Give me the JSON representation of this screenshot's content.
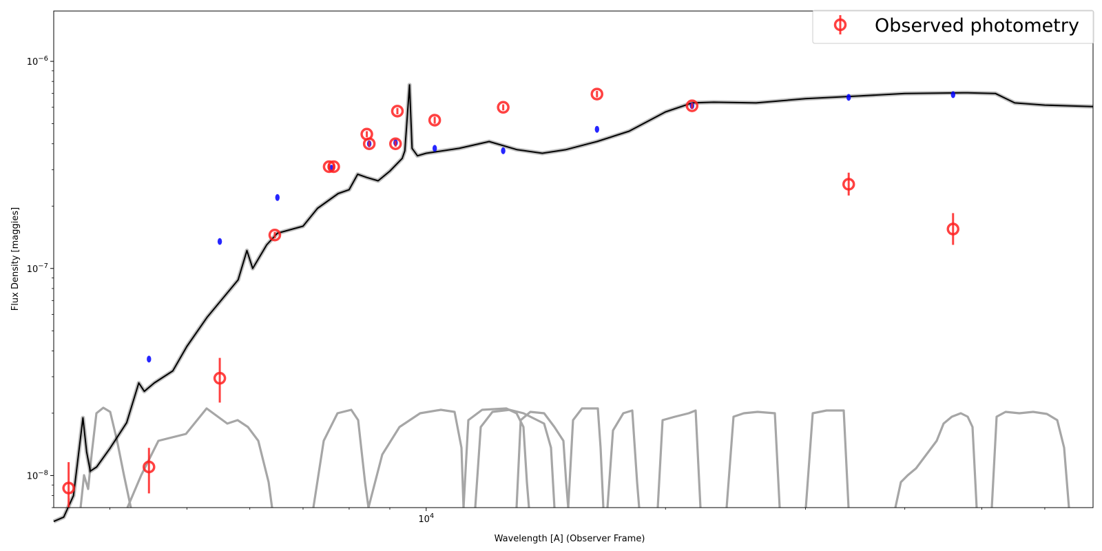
{
  "chart_data": {
    "type": "scatter",
    "title": "",
    "xlabel": "Wavelength [A] (Observer Frame)",
    "ylabel": "Flux Density [maggies]",
    "x_scale": "log",
    "y_scale": "log",
    "xlim": [
      3400,
      69000
    ],
    "ylim": [
      7e-09,
      1.75e-06
    ],
    "grid": false,
    "legend": {
      "placement": "top-right",
      "entries": [
        "Observed photometry"
      ]
    },
    "colors": {
      "observed": "#ff2020",
      "model_photometry": "#0000ff",
      "spectrum": "#000000",
      "filters": "#a6a6a6"
    },
    "y_ticks": [
      {
        "value": 1e-08,
        "label_base": "10",
        "label_exp": "−8"
      },
      {
        "value": 1e-07,
        "label_base": "10",
        "label_exp": "−7"
      },
      {
        "value": 1e-06,
        "label_base": "10",
        "label_exp": "−6"
      }
    ],
    "x_ticks": [
      {
        "value": 10000,
        "label_base": "10",
        "label_exp": "4"
      }
    ],
    "x_minor_ticks": [
      4000,
      5000,
      6000,
      7000,
      8000,
      9000,
      20000,
      30000,
      40000,
      50000,
      60000
    ],
    "series": [
      {
        "name": "Observed photometry",
        "kind": "errorbar",
        "points": [
          {
            "x": 3550,
            "y": 8.7e-09,
            "ylo": 6.8e-09,
            "yhi": 1.16e-08
          },
          {
            "x": 4480,
            "y": 1.1e-08,
            "ylo": 8.2e-09,
            "yhi": 1.36e-08
          },
          {
            "x": 5500,
            "y": 2.95e-08,
            "ylo": 2.25e-08,
            "yhi": 3.7e-08
          },
          {
            "x": 6450,
            "y": 1.45e-07,
            "ylo": 1.4e-07,
            "yhi": 1.5e-07
          },
          {
            "x": 7550,
            "y": 3.1e-07,
            "ylo": 3e-07,
            "yhi": 3.2e-07
          },
          {
            "x": 7650,
            "y": 3.1e-07,
            "ylo": 3e-07,
            "yhi": 3.2e-07
          },
          {
            "x": 8420,
            "y": 4.45e-07,
            "ylo": 4.3e-07,
            "yhi": 4.6e-07
          },
          {
            "x": 8480,
            "y": 4e-07,
            "ylo": 3.87e-07,
            "yhi": 4.13e-07
          },
          {
            "x": 9150,
            "y": 4e-07,
            "ylo": 3.87e-07,
            "yhi": 4.13e-07
          },
          {
            "x": 9200,
            "y": 5.75e-07,
            "ylo": 5.55e-07,
            "yhi": 5.95e-07
          },
          {
            "x": 10250,
            "y": 5.2e-07,
            "ylo": 5e-07,
            "yhi": 5.4e-07
          },
          {
            "x": 12500,
            "y": 6e-07,
            "ylo": 5.8e-07,
            "yhi": 6.2e-07
          },
          {
            "x": 16400,
            "y": 6.95e-07,
            "ylo": 6.7e-07,
            "yhi": 7.2e-07
          },
          {
            "x": 21600,
            "y": 6.1e-07,
            "ylo": 5.9e-07,
            "yhi": 6.3e-07
          },
          {
            "x": 34000,
            "y": 2.55e-07,
            "ylo": 2.25e-07,
            "yhi": 2.9e-07
          },
          {
            "x": 46000,
            "y": 1.55e-07,
            "ylo": 1.3e-07,
            "yhi": 1.85e-07
          }
        ]
      },
      {
        "name": "",
        "kind": "model_photometry",
        "points": [
          {
            "x": 4480,
            "y": 3.65e-08
          },
          {
            "x": 5500,
            "y": 1.35e-07
          },
          {
            "x": 6500,
            "y": 2.2e-07
          },
          {
            "x": 7600,
            "y": 3.05e-07
          },
          {
            "x": 8480,
            "y": 4e-07
          },
          {
            "x": 9150,
            "y": 4.05e-07
          },
          {
            "x": 10250,
            "y": 3.8e-07
          },
          {
            "x": 12500,
            "y": 3.7e-07
          },
          {
            "x": 16400,
            "y": 4.7e-07
          },
          {
            "x": 21600,
            "y": 6.1e-07
          },
          {
            "x": 34000,
            "y": 6.7e-07
          },
          {
            "x": 46000,
            "y": 6.9e-07
          }
        ]
      },
      {
        "name": "",
        "kind": "model_spectrum",
        "points": [
          [
            3400,
            6e-09
          ],
          [
            3500,
            6.3e-09
          ],
          [
            3600,
            8e-09
          ],
          [
            3680,
            1.6e-08
          ],
          [
            3700,
            1.9e-08
          ],
          [
            3740,
            1.3e-08
          ],
          [
            3780,
            1.05e-08
          ],
          [
            3850,
            1.1e-08
          ],
          [
            4000,
            1.35e-08
          ],
          [
            4200,
            1.8e-08
          ],
          [
            4350,
            2.8e-08
          ],
          [
            4420,
            2.55e-08
          ],
          [
            4550,
            2.8e-08
          ],
          [
            4800,
            3.2e-08
          ],
          [
            5000,
            4.2e-08
          ],
          [
            5300,
            5.8e-08
          ],
          [
            5800,
            8.8e-08
          ],
          [
            5950,
            1.22e-07
          ],
          [
            6050,
            1e-07
          ],
          [
            6300,
            1.3e-07
          ],
          [
            6500,
            1.48e-07
          ],
          [
            7000,
            1.6e-07
          ],
          [
            7300,
            1.95e-07
          ],
          [
            7750,
            2.3e-07
          ],
          [
            8000,
            2.4e-07
          ],
          [
            8200,
            2.85e-07
          ],
          [
            8420,
            2.75e-07
          ],
          [
            8700,
            2.65e-07
          ],
          [
            9000,
            2.95e-07
          ],
          [
            9330,
            3.4e-07
          ],
          [
            9400,
            3.7e-07
          ],
          [
            9530,
            7.7e-07
          ],
          [
            9600,
            3.8e-07
          ],
          [
            9750,
            3.5e-07
          ],
          [
            10000,
            3.6e-07
          ],
          [
            11000,
            3.8e-07
          ],
          [
            12000,
            4.1e-07
          ],
          [
            13000,
            3.75e-07
          ],
          [
            14000,
            3.6e-07
          ],
          [
            15000,
            3.75e-07
          ],
          [
            16000,
            4e-07
          ],
          [
            16400,
            4.1e-07
          ],
          [
            18000,
            4.6e-07
          ],
          [
            20000,
            5.7e-07
          ],
          [
            21600,
            6.3e-07
          ],
          [
            23000,
            6.35e-07
          ],
          [
            26000,
            6.3e-07
          ],
          [
            30000,
            6.6e-07
          ],
          [
            35000,
            6.8e-07
          ],
          [
            40000,
            7e-07
          ],
          [
            48000,
            7.05e-07
          ],
          [
            52000,
            7e-07
          ],
          [
            55000,
            6.3e-07
          ],
          [
            60000,
            6.15e-07
          ],
          [
            69000,
            6.05e-07
          ]
        ]
      }
    ]
  }
}
